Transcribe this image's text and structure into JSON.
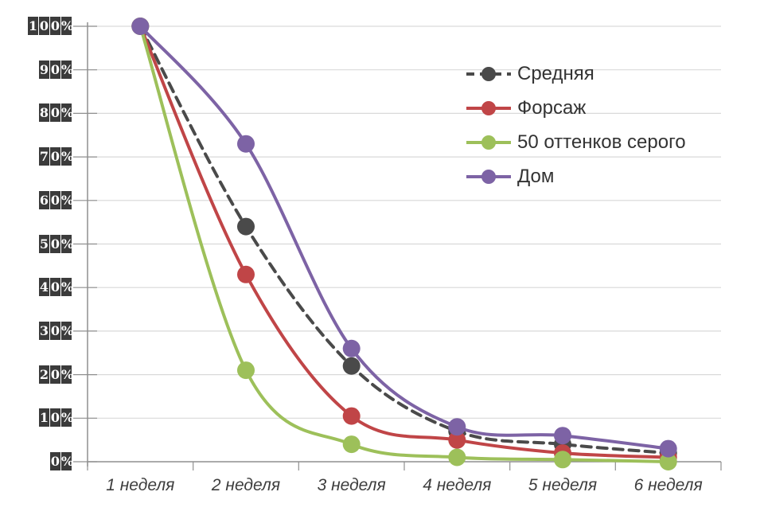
{
  "chart_data": {
    "type": "line",
    "title": "",
    "xlabel": "",
    "ylabel": "",
    "categories": [
      "1 неделя",
      "2 неделя",
      "3 неделя",
      "4 неделя",
      "5 неделя",
      "6 неделя"
    ],
    "series": [
      {
        "name": "Средняя",
        "color": "#4a4a4a",
        "dashed": true,
        "values": [
          100,
          54,
          22,
          7,
          4,
          2
        ]
      },
      {
        "name": "Форсаж",
        "color": "#c04547",
        "dashed": false,
        "values": [
          100,
          43,
          10.5,
          5,
          2,
          1
        ]
      },
      {
        "name": "50 оттенков серого",
        "color": "#9dc05a",
        "dashed": false,
        "values": [
          100,
          21,
          4,
          1,
          0.5,
          0
        ]
      },
      {
        "name": "Дом",
        "color": "#7d63a5",
        "dashed": false,
        "values": [
          100,
          73,
          26,
          8,
          6,
          3
        ]
      }
    ],
    "y_ticks": [
      "0%",
      "10%",
      "20%",
      "30%",
      "40%",
      "50%",
      "60%",
      "70%",
      "80%",
      "90%",
      "100%"
    ],
    "ylim": [
      0,
      100
    ],
    "grid": true,
    "smoothed_lines": true,
    "legend_position": "top-right",
    "colors": {
      "grid": "#d9d9d9",
      "axis": "#8f8f8f",
      "y_tick_label_bg": "#3b3b3b",
      "y_tick_label_text": "#ffffff",
      "x_tick_label_text": "#3d3d3d",
      "legend_text": "#333333"
    }
  }
}
